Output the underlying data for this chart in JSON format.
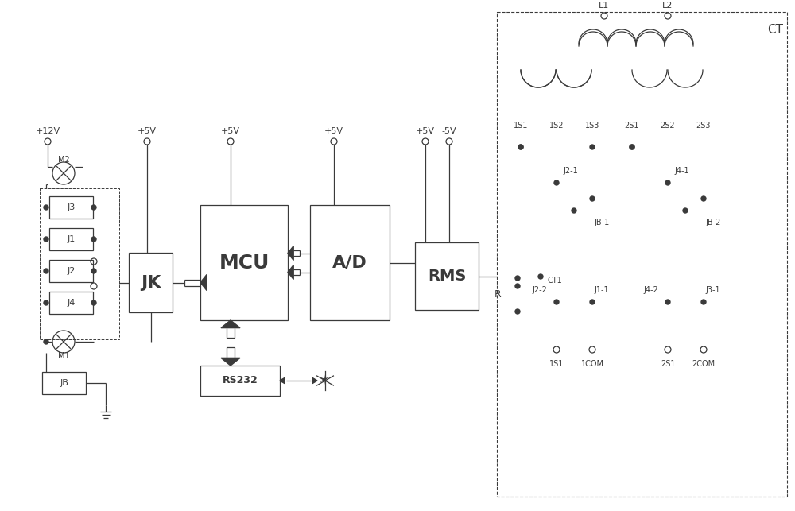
{
  "bg_color": "#ffffff",
  "line_color": "#3a3a3a",
  "fig_width": 10.0,
  "fig_height": 6.43,
  "dpi": 100,
  "lw": 0.9,
  "relay_labels": [
    "J3",
    "J1",
    "J2",
    "J4"
  ],
  "terminal_labels": [
    "1S1",
    "1S2",
    "1S3",
    "2S1",
    "2S2",
    "2S3"
  ],
  "bottom_labels": [
    "1S1",
    "1COM",
    "2S1",
    "2COM"
  ]
}
